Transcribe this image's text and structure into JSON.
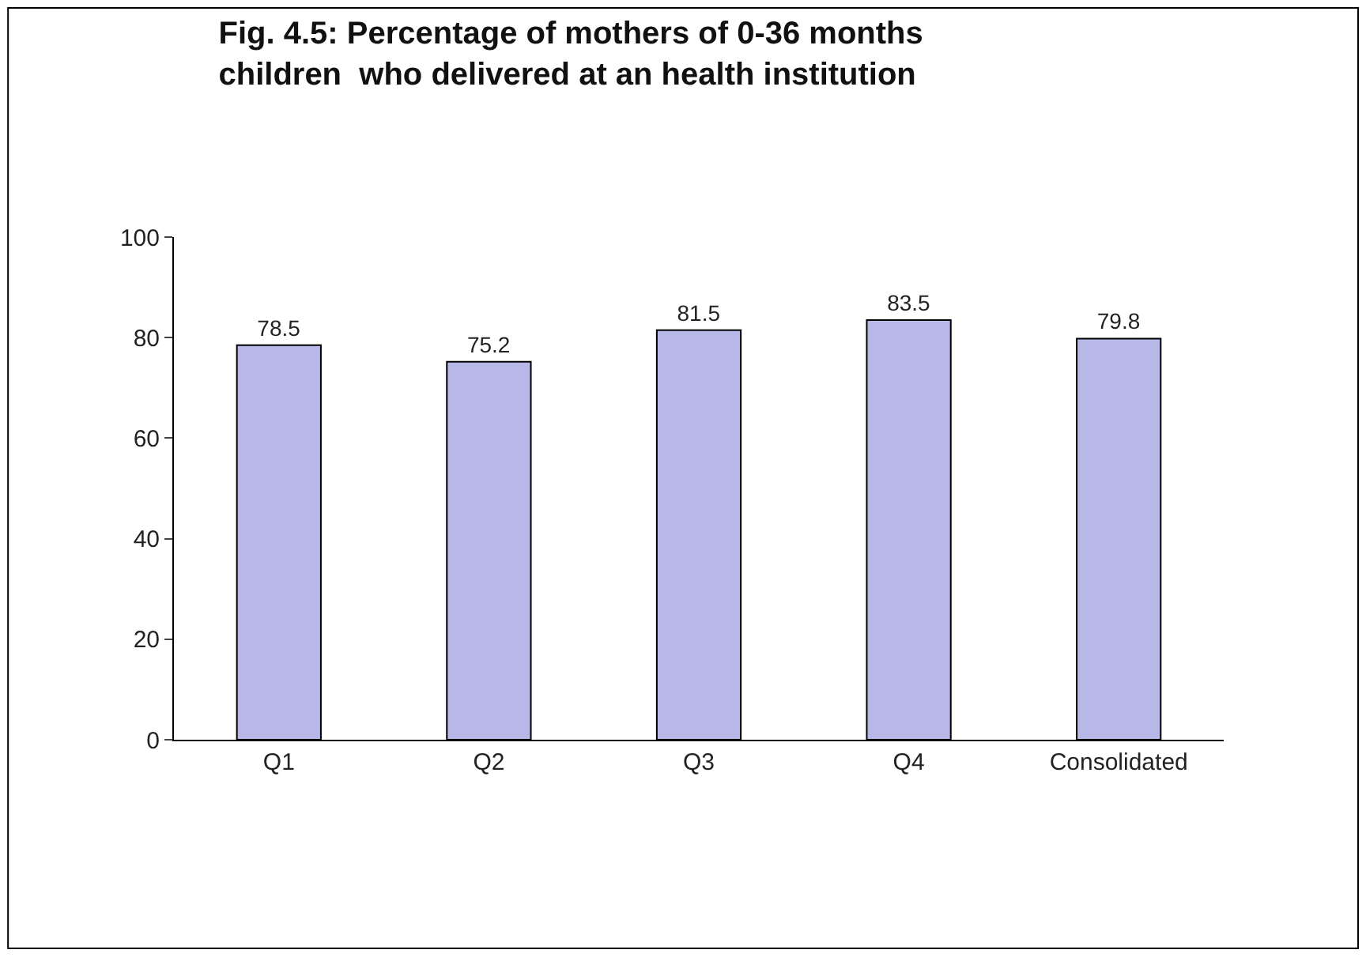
{
  "chart_data": {
    "type": "bar",
    "title": "Fig. 4.5: Percentage of mothers of 0-36 months\nchildren  who delivered at an health institution",
    "categories": [
      "Q1",
      "Q2",
      "Q3",
      "Q4",
      "Consolidated"
    ],
    "values": [
      78.5,
      75.2,
      81.5,
      83.5,
      79.8
    ],
    "color": "#b8b8e8",
    "ylim": [
      0,
      100
    ],
    "yticks": [
      0,
      20,
      40,
      60,
      80,
      100
    ],
    "data_labels": true
  }
}
